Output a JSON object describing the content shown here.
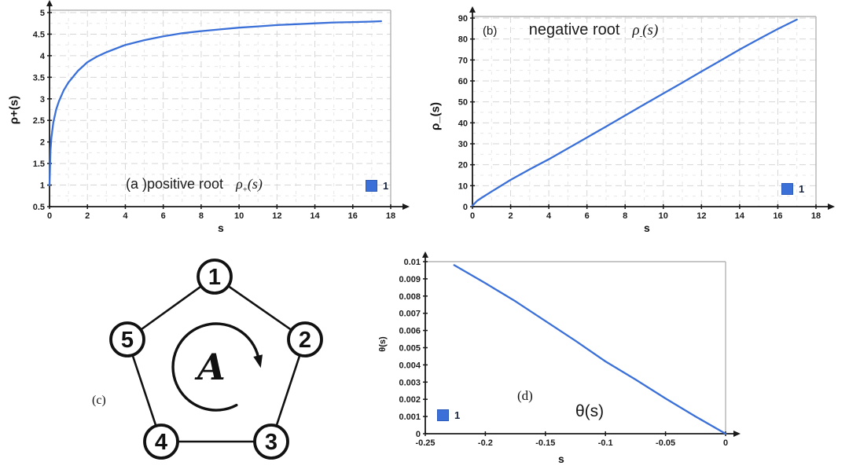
{
  "colors": {
    "series_blue": "#3a70d8",
    "legend_border": "#2c5ab8",
    "grid_major": "#d6d6d6",
    "grid_minor": "#e7e7e7",
    "plot_border": "#b3b3b3",
    "axis": "#1a1a1a",
    "tick_text": "#1c1c1c",
    "background": "#ffffff"
  },
  "panels": {
    "a": {
      "caption_label": "(a )positive root",
      "math_base": "ρ",
      "math_sub": "+",
      "math_tail": "(s)",
      "xlabel": "s",
      "ylabel": "ρ+(s)",
      "legend_label": "1"
    },
    "b": {
      "caption_label": "(b)",
      "caption_text": "negative root",
      "math_base": "ρ",
      "math_sub": "-",
      "math_tail": "(s)",
      "xlabel": "s",
      "ylabel": "ρ_(s)",
      "legend_label": "1"
    },
    "c": {
      "label": "(c)",
      "node_labels": [
        "1",
        "2",
        "3",
        "4",
        "5"
      ],
      "center_symbol": "A",
      "rotation_direction": "clockwise"
    },
    "d": {
      "caption_label": "(d)",
      "caption_text": "θ(s)",
      "xlabel": "s",
      "ylabel": "θ(s)",
      "legend_label": "1"
    }
  },
  "chart_data": [
    {
      "id": "a",
      "type": "line",
      "title": "(a) positive root ρ+(s)",
      "xlabel": "s",
      "ylabel": "ρ+(s)",
      "xlim": [
        0,
        18
      ],
      "ylim": [
        0.5,
        5
      ],
      "xticks": [
        0,
        2,
        4,
        6,
        8,
        10,
        12,
        14,
        16,
        18
      ],
      "xtick_labels": [
        "0",
        "2",
        "4",
        "6",
        "8",
        "10",
        "12",
        "14",
        "16",
        "18"
      ],
      "yticks": [
        0.5,
        1,
        1.5,
        2,
        2.5,
        3,
        3.5,
        4,
        4.5,
        5
      ],
      "ytick_labels": [
        "0.5",
        "1",
        "1.5",
        "2",
        "2.5",
        "3",
        "3.5",
        "4",
        "4.5",
        "5"
      ],
      "grid": true,
      "legend_position": "bottom-right",
      "series": [
        {
          "name": "1",
          "color": "#3a70d8",
          "x": [
            0,
            0.05,
            0.1,
            0.2,
            0.35,
            0.5,
            0.75,
            1,
            1.5,
            2,
            2.5,
            3,
            4,
            5,
            6,
            7,
            8,
            9,
            10,
            11,
            12,
            13,
            14,
            15,
            16,
            17,
            17.5
          ],
          "y": [
            1.0,
            1.8,
            2.1,
            2.45,
            2.75,
            2.95,
            3.2,
            3.38,
            3.65,
            3.85,
            3.98,
            4.08,
            4.25,
            4.36,
            4.45,
            4.52,
            4.57,
            4.61,
            4.65,
            4.68,
            4.71,
            4.73,
            4.75,
            4.77,
            4.78,
            4.79,
            4.8
          ]
        }
      ]
    },
    {
      "id": "b",
      "type": "line",
      "title": "(b) negative root ρ-(s)",
      "xlabel": "s",
      "ylabel": "ρ_(s)",
      "xlim": [
        0,
        18
      ],
      "ylim": [
        0,
        90
      ],
      "xticks": [
        0,
        2,
        4,
        6,
        8,
        10,
        12,
        14,
        16,
        18
      ],
      "xtick_labels": [
        "0",
        "2",
        "4",
        "6",
        "8",
        "10",
        "12",
        "14",
        "16",
        "18"
      ],
      "yticks": [
        0,
        10,
        20,
        30,
        40,
        50,
        60,
        70,
        80,
        90
      ],
      "ytick_labels": [
        "0",
        "10",
        "20",
        "30",
        "40",
        "50",
        "60",
        "70",
        "80",
        "90"
      ],
      "grid": true,
      "legend_position": "bottom-right",
      "series": [
        {
          "name": "1",
          "color": "#3a70d8",
          "x": [
            0,
            0.25,
            0.5,
            1,
            2,
            3,
            4,
            5,
            6,
            7,
            8,
            9,
            10,
            11,
            12,
            13,
            14,
            15,
            16,
            17
          ],
          "y": [
            0.5,
            2.8,
            4.3,
            7.2,
            12.8,
            17.8,
            22.6,
            27.8,
            33,
            38.2,
            43.5,
            48.8,
            54,
            59.2,
            64.5,
            69.7,
            75,
            80,
            84.8,
            89.3
          ]
        }
      ]
    },
    {
      "id": "d",
      "type": "line",
      "title": "(d) θ(s)",
      "xlabel": "s",
      "ylabel": "θ(s)",
      "xlim": [
        -0.25,
        0
      ],
      "ylim": [
        0,
        0.01
      ],
      "xticks": [
        -0.25,
        -0.2,
        -0.15,
        -0.1,
        -0.05,
        0
      ],
      "xtick_labels": [
        "-0.25",
        "-0.2",
        "-0.15",
        "-0.1",
        "-0.05",
        "0"
      ],
      "yticks": [
        0,
        0.001,
        0.002,
        0.003,
        0.004,
        0.005,
        0.006,
        0.007,
        0.008,
        0.009,
        0.01
      ],
      "ytick_labels": [
        "0",
        "0.001",
        "0.002",
        "0.003",
        "0.004",
        "0.005",
        "0.006",
        "0.007",
        "0.008",
        "0.009",
        "0.01"
      ],
      "grid": false,
      "legend_position": "bottom-left",
      "series": [
        {
          "name": "1",
          "color": "#3a70d8",
          "x": [
            -0.226,
            -0.2,
            -0.175,
            -0.15,
            -0.125,
            -0.1,
            -0.075,
            -0.05,
            -0.025,
            0
          ],
          "y": [
            0.0098,
            0.00875,
            0.0077,
            0.00655,
            0.0054,
            0.0042,
            0.00315,
            0.00205,
            0.001,
            0
          ]
        }
      ]
    }
  ]
}
